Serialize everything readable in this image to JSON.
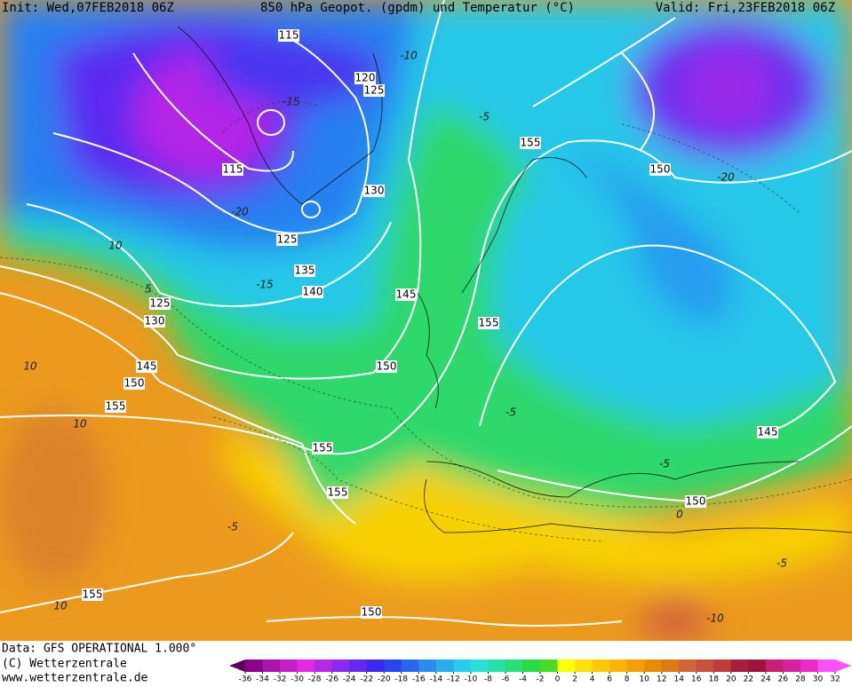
{
  "header": {
    "init": "Init: Wed,07FEB2018 06Z",
    "title": "850 hPa Geopot. (gpdm) und Temperatur (°C)",
    "valid": "Valid: Fri,23FEB2018 06Z"
  },
  "map": {
    "geopotential_labels": [
      115,
      120,
      125,
      115,
      130,
      125,
      135,
      140,
      145,
      125,
      130,
      155,
      145,
      150,
      150,
      155,
      155,
      150,
      155,
      155,
      145,
      150,
      155,
      150
    ],
    "temperature_labels": [
      -10,
      -15,
      -5,
      -20,
      -20,
      10,
      -15,
      5,
      10,
      10,
      -5,
      -5,
      0,
      -5,
      -5,
      10,
      -10
    ]
  },
  "footer": {
    "data": "Data: GFS OPERATIONAL 1.000°",
    "copyright": "(C) Wetterzentrale",
    "url": "www.wetterzentrale.de"
  },
  "colorbar": {
    "ticks": [
      -36,
      -34,
      -32,
      -30,
      -28,
      -26,
      -24,
      -22,
      -20,
      -18,
      -16,
      -14,
      -12,
      -10,
      -8,
      -6,
      -4,
      -2,
      0,
      2,
      4,
      6,
      8,
      10,
      12,
      14,
      16,
      18,
      20,
      22,
      24,
      26,
      28,
      30,
      32
    ],
    "colors": [
      "#8c008c",
      "#aa14aa",
      "#c81ec8",
      "#e628e6",
      "#b428e6",
      "#8c28f0",
      "#6428f0",
      "#3c28f0",
      "#2846f0",
      "#2868f0",
      "#288cf0",
      "#28aef0",
      "#28ccf0",
      "#28e0d8",
      "#28e0aa",
      "#28e078",
      "#28dc46",
      "#46dc28",
      "#ffff00",
      "#ffe100",
      "#ffc800",
      "#ffb400",
      "#f5a000",
      "#eb8c00",
      "#e17814",
      "#d2643c",
      "#c8503c",
      "#be3c3c",
      "#aa1e3c",
      "#a0143c",
      "#c81e78",
      "#dc1ea0",
      "#f028c8",
      "#ff50ff"
    ],
    "low_color": "#5a005a",
    "high_color": "#ff50ff"
  }
}
